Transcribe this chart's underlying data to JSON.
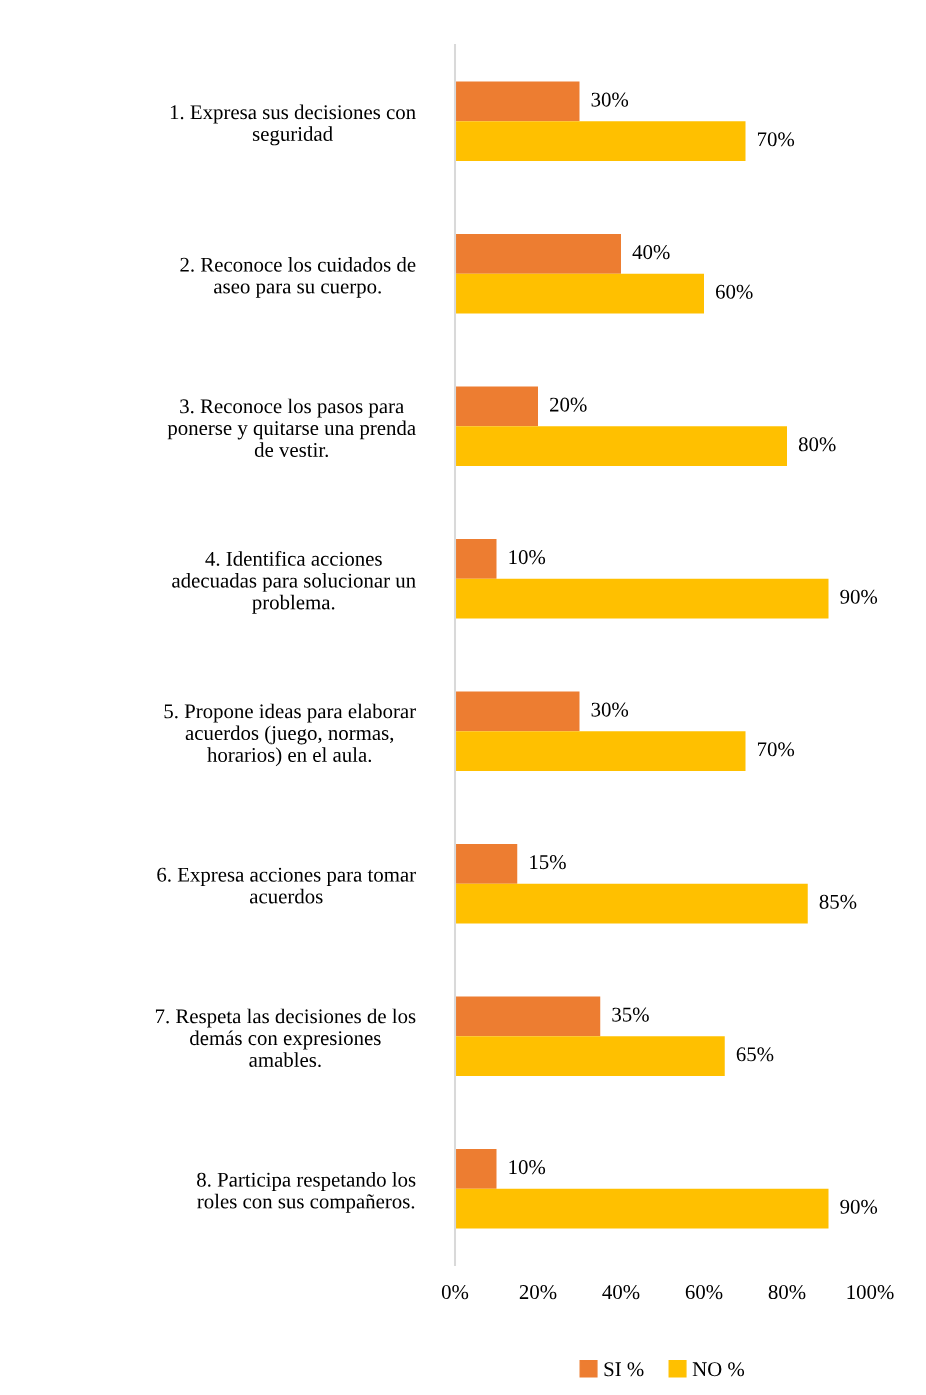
{
  "chart_data": {
    "type": "bar",
    "orientation": "horizontal",
    "categories": [
      "1. Expresa sus decisiones con\nseguridad",
      "2. Reconoce los cuidados de\naseo para su cuerpo.",
      "3. Reconoce los pasos para\nponerse y quitarse una prenda\nde vestir.",
      "4. Identifica acciones\nadecuadas para solucionar un\nproblema.",
      "5. Propone ideas para elaborar\nacuerdos (juego, normas,\nhorarios) en el aula.",
      "6. Expresa acciones para tomar\nacuerdos",
      "7. Respeta las decisiones de los\ndemás con expresiones\namables.",
      "8. Participa respetando los\nroles con sus compañeros."
    ],
    "series": [
      {
        "name": "SI %",
        "color": "#ed7d31",
        "values": [
          30,
          40,
          20,
          10,
          30,
          15,
          35,
          10
        ],
        "value_labels": [
          "30%",
          "40%",
          "20%",
          "10%",
          "30%",
          "15%",
          "35%",
          "10%"
        ]
      },
      {
        "name": "NO %",
        "color": "#ffc000",
        "values": [
          70,
          60,
          80,
          90,
          70,
          85,
          65,
          90
        ],
        "value_labels": [
          "70%",
          "60%",
          "80%",
          "90%",
          "70%",
          "85%",
          "65%",
          "90%"
        ]
      }
    ],
    "xlim": [
      0,
      100
    ],
    "xticks": [
      {
        "value": 0,
        "label": "0%"
      },
      {
        "value": 20,
        "label": "20%"
      },
      {
        "value": 40,
        "label": "40%"
      },
      {
        "value": 60,
        "label": "60%"
      },
      {
        "value": 80,
        "label": "80%"
      },
      {
        "value": 100,
        "label": "100%"
      }
    ],
    "grid": false,
    "legend": "bottom"
  }
}
